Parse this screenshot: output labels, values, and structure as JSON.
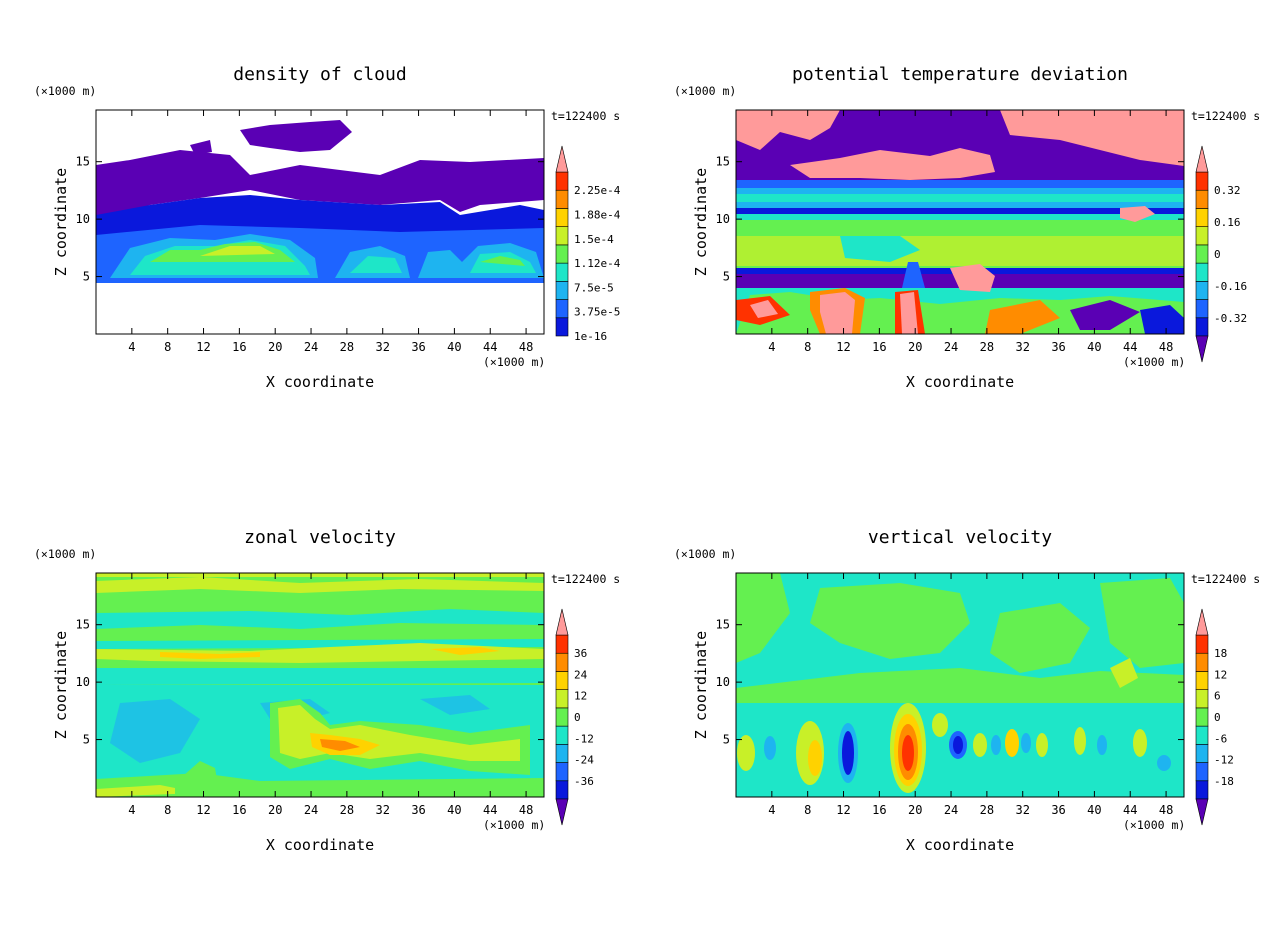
{
  "chart_data": [
    {
      "type": "heatmap",
      "title": "density of cloud",
      "xlabel": "X coordinate",
      "ylabel": "Z coordinate",
      "x_unit": "(×1000 m)",
      "y_unit": "(×1000 m)",
      "time_label": "t=122400 s",
      "xlim": [
        0,
        50
      ],
      "ylim": [
        0,
        19.5
      ],
      "x_ticks": [
        "4",
        "8",
        "12",
        "16",
        "20",
        "24",
        "28",
        "32",
        "36",
        "40",
        "44",
        "48"
      ],
      "y_ticks": [
        "5",
        "10",
        "15"
      ],
      "colorbar_labels": [
        "2.25e-4",
        "1.88e-4",
        "1.5e-4",
        "1.12e-4",
        "7.5e-5",
        "3.75e-5",
        "1e-16"
      ],
      "colorbar_arrows": "top",
      "colors": [
        "#5a00b4",
        "#0a18dc",
        "#1e64ff",
        "#1eb4f0",
        "#1ee6c8",
        "#64f050",
        "#c8f028",
        "#ffd200",
        "#ff8c00",
        "#ff3200",
        "#ff9a9a"
      ]
    },
    {
      "type": "heatmap",
      "title": "potential temperature deviation",
      "xlabel": "X coordinate",
      "ylabel": "Z coordinate",
      "x_unit": "(×1000 m)",
      "y_unit": "(×1000 m)",
      "time_label": "t=122400 s",
      "xlim": [
        0,
        50
      ],
      "ylim": [
        0,
        19.5
      ],
      "x_ticks": [
        "4",
        "8",
        "12",
        "16",
        "20",
        "24",
        "28",
        "32",
        "36",
        "40",
        "44",
        "48"
      ],
      "y_ticks": [
        "5",
        "10",
        "15"
      ],
      "colorbar_labels": [
        "0.32",
        "0.16",
        "0",
        "-0.16",
        "-0.32"
      ],
      "colorbar_arrows": "both",
      "colors": [
        "#5a00b4",
        "#0a18dc",
        "#1e64ff",
        "#1eb4f0",
        "#1ee6c8",
        "#64f050",
        "#c8f028",
        "#ffd200",
        "#ff8c00",
        "#ff3200",
        "#ff9a9a"
      ]
    },
    {
      "type": "heatmap",
      "title": "zonal velocity",
      "xlabel": "X coordinate",
      "ylabel": "Z coordinate",
      "x_unit": "(×1000 m)",
      "y_unit": "(×1000 m)",
      "time_label": "t=122400 s",
      "xlim": [
        0,
        50
      ],
      "ylim": [
        0,
        19.5
      ],
      "x_ticks": [
        "4",
        "8",
        "12",
        "16",
        "20",
        "24",
        "28",
        "32",
        "36",
        "40",
        "44",
        "48"
      ],
      "y_ticks": [
        "5",
        "10",
        "15"
      ],
      "colorbar_labels": [
        "36",
        "24",
        "12",
        "0",
        "-12",
        "-24",
        "-36"
      ],
      "colorbar_arrows": "both",
      "colors": [
        "#5a00b4",
        "#0a18dc",
        "#1e64ff",
        "#1eb4f0",
        "#1ee6c8",
        "#64f050",
        "#c8f028",
        "#ffd200",
        "#ff8c00",
        "#ff3200",
        "#ff9a9a"
      ]
    },
    {
      "type": "heatmap",
      "title": "vertical velocity",
      "xlabel": "X coordinate",
      "ylabel": "Z coordinate",
      "x_unit": "(×1000 m)",
      "y_unit": "(×1000 m)",
      "time_label": "t=122400 s",
      "xlim": [
        0,
        50
      ],
      "ylim": [
        0,
        19.5
      ],
      "x_ticks": [
        "4",
        "8",
        "12",
        "16",
        "20",
        "24",
        "28",
        "32",
        "36",
        "40",
        "44",
        "48"
      ],
      "y_ticks": [
        "5",
        "10",
        "15"
      ],
      "colorbar_labels": [
        "18",
        "12",
        "6",
        "0",
        "-6",
        "-12",
        "-18"
      ],
      "colorbar_arrows": "both",
      "colors": [
        "#5a00b4",
        "#0a18dc",
        "#1e64ff",
        "#1eb4f0",
        "#1ee6c8",
        "#64f050",
        "#c8f028",
        "#ffd200",
        "#ff8c00",
        "#ff3200",
        "#ff9a9a"
      ]
    }
  ]
}
